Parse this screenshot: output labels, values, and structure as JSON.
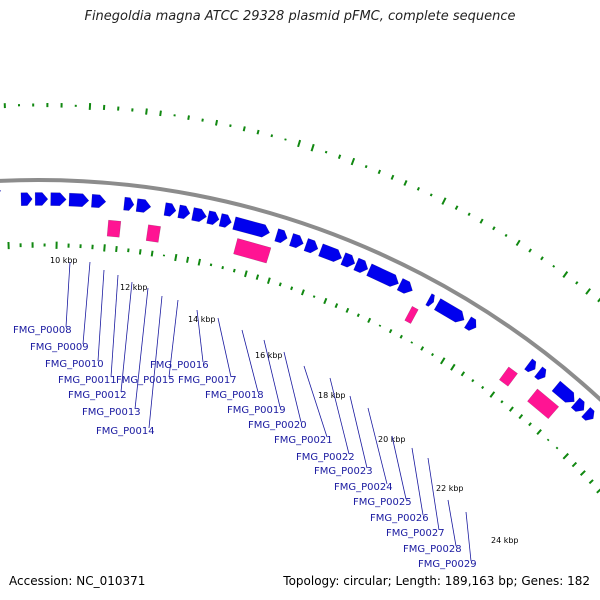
{
  "title": "Finegoldia magna ATCC 29328 plasmid pFMC, complete sequence",
  "footer": {
    "accession": "Accession: NC_010371",
    "topology": "Topology: circular; Length: 189,163 bp; Genes: 182"
  },
  "colors": {
    "backbone": "#8c8c8c",
    "cds": "#0000ee",
    "rna": "#ff1493",
    "gc": "#118811",
    "label": "#1a1aa0"
  },
  "ticks": [
    "10 kbp",
    "12 kbp",
    "14 kbp",
    "16 kbp",
    "18 kbp",
    "20 kbp",
    "22 kbp",
    "24 kbp"
  ],
  "genes": [
    "FMG_P0008",
    "FMG_P0009",
    "FMG_P0010",
    "FMG_P0011",
    "FMG_P0012",
    "FMG_P0013",
    "FMG_P0014",
    "FMG_P0015",
    "FMG_P0016",
    "FMG_P0017",
    "FMG_P0018",
    "FMG_P0019",
    "FMG_P0020",
    "FMG_P0021",
    "FMG_P0022",
    "FMG_P0023",
    "FMG_P0024",
    "FMG_P0025",
    "FMG_P0026",
    "FMG_P0027",
    "FMG_P0028",
    "FMG_P0029"
  ]
}
